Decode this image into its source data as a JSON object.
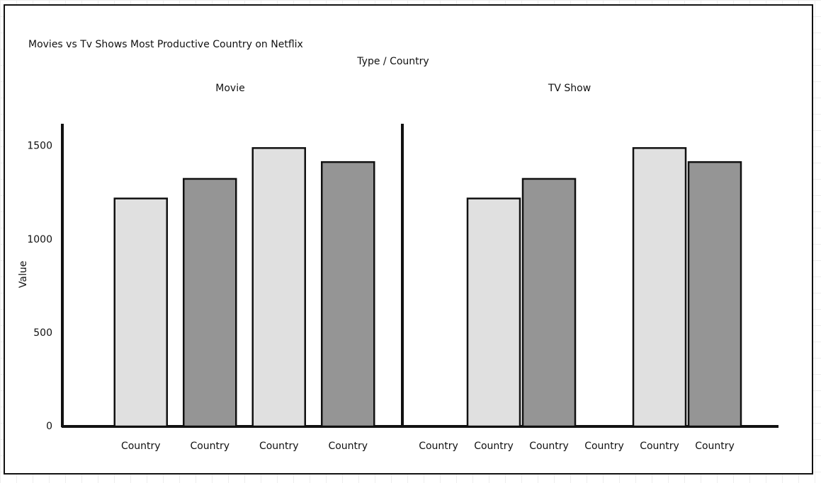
{
  "chart_data": {
    "type": "bar",
    "title": "Movies vs Tv Shows Most Productive Country on Netflix",
    "subtitle": "Type / Country",
    "y_label": "Value",
    "ylim": [
      0,
      1620
    ],
    "yticks": [
      0,
      500,
      1000,
      1500
    ],
    "panels": [
      {
        "title": "Movie",
        "categories": [
          "Country",
          "Country",
          "Country",
          "Country"
        ],
        "values": [
          1220,
          1325,
          1490,
          1415
        ],
        "colors": [
          "#e0e0e0",
          "#959595",
          "#e0e0e0",
          "#959595"
        ]
      },
      {
        "title": "TV Show",
        "categories": [
          "Country",
          "Country",
          "Country",
          "Country",
          "Country",
          "Country"
        ],
        "values": [
          null,
          1220,
          1325,
          null,
          1490,
          1415
        ],
        "colors": [
          "#e0e0e0",
          "#e0e0e0",
          "#959595",
          "#e0e0e0",
          "#e0e0e0",
          "#959595"
        ]
      }
    ]
  }
}
